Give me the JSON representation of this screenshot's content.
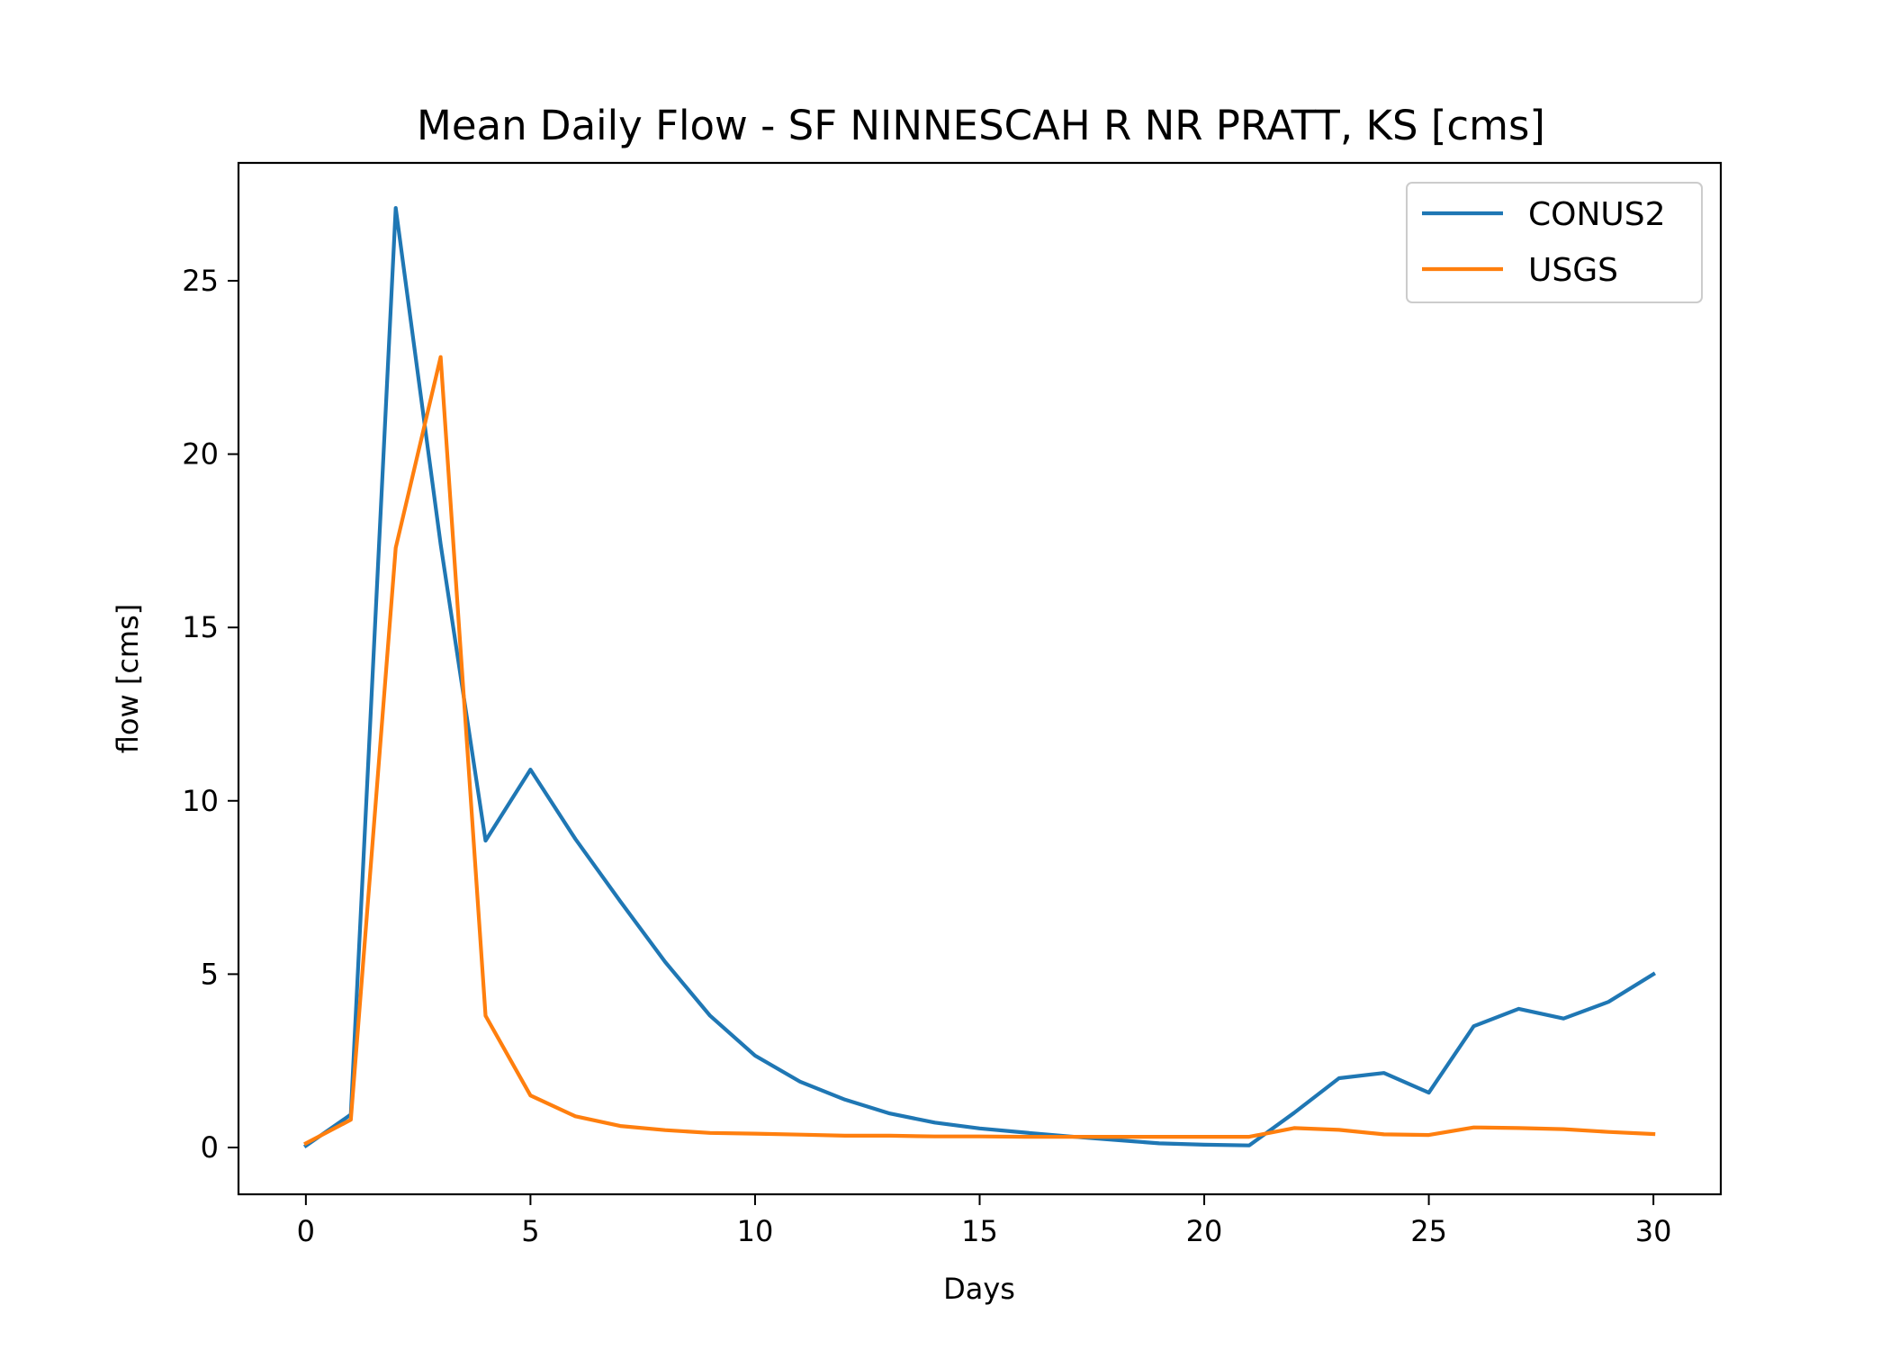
{
  "chart_data": {
    "type": "line",
    "title": "Mean Daily Flow - SF NINNESCAH R NR PRATT, KS [cms]",
    "xlabel": "Days",
    "ylabel": "flow [cms]",
    "xlim": [
      -1.5,
      31.5
    ],
    "ylim": [
      -1.35,
      28.4
    ],
    "xticks": [
      0,
      5,
      10,
      15,
      20,
      25,
      30
    ],
    "yticks": [
      0,
      5,
      10,
      15,
      20,
      25
    ],
    "grid": false,
    "legend_position": "top-right",
    "x": [
      0,
      1,
      2,
      3,
      4,
      5,
      6,
      7,
      8,
      9,
      10,
      11,
      12,
      13,
      14,
      15,
      16,
      17,
      18,
      19,
      20,
      21,
      22,
      23,
      24,
      25,
      26,
      27,
      28,
      29,
      30
    ],
    "series": [
      {
        "name": "CONUS2",
        "color": "#1f77b4",
        "values": [
          0.05,
          0.95,
          27.1,
          17.4,
          8.85,
          10.9,
          8.9,
          7.1,
          5.35,
          3.8,
          2.65,
          1.9,
          1.38,
          0.98,
          0.72,
          0.55,
          0.43,
          0.32,
          0.22,
          0.12,
          0.08,
          0.06,
          1.0,
          2.0,
          2.15,
          1.58,
          3.5,
          4.0,
          3.72,
          4.2,
          5.0
        ]
      },
      {
        "name": "USGS",
        "color": "#ff7f0e",
        "values": [
          0.12,
          0.8,
          17.3,
          22.8,
          3.8,
          1.5,
          0.9,
          0.62,
          0.5,
          0.42,
          0.4,
          0.37,
          0.34,
          0.34,
          0.32,
          0.32,
          0.31,
          0.31,
          0.31,
          0.31,
          0.31,
          0.31,
          0.56,
          0.51,
          0.38,
          0.36,
          0.58,
          0.56,
          0.53,
          0.45,
          0.39
        ]
      }
    ]
  }
}
